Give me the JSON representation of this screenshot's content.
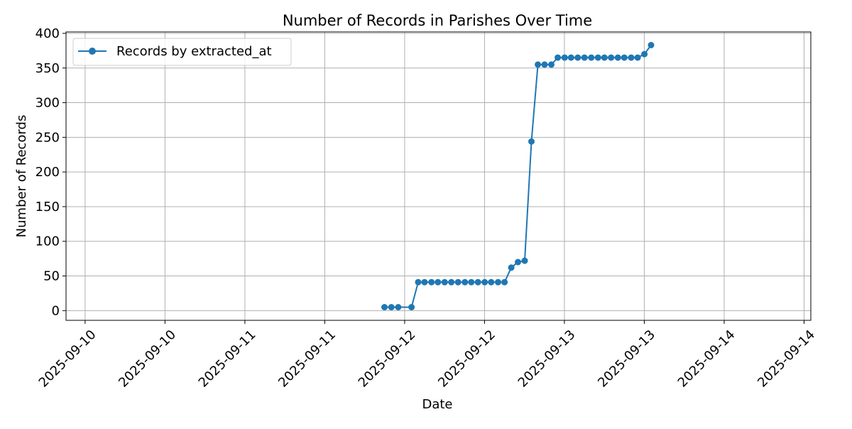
{
  "chart_data": {
    "type": "line",
    "title": "Number of Records in Parishes Over Time",
    "xlabel": "Date",
    "ylabel": "Number of Records",
    "x_tick_labels": [
      "2025-09-10",
      "2025-09-10",
      "2025-09-11",
      "2025-09-11",
      "2025-09-12",
      "2025-09-12",
      "2025-09-13",
      "2025-09-13",
      "2025-09-14",
      "2025-09-14"
    ],
    "x_tick_times": [
      "2025-09-10 00:00",
      "2025-09-10 12:00",
      "2025-09-11 00:00",
      "2025-09-11 12:00",
      "2025-09-12 00:00",
      "2025-09-12 12:00",
      "2025-09-13 00:00",
      "2025-09-13 12:00",
      "2025-09-14 00:00",
      "2025-09-14 12:00"
    ],
    "xlim": [
      "2025-09-09 21:08",
      "2025-09-14 13:01"
    ],
    "y_ticks": [
      0,
      50,
      100,
      150,
      200,
      250,
      300,
      350,
      400
    ],
    "ylim": [
      -14,
      402
    ],
    "grid": true,
    "legend_position": "upper left",
    "series": [
      {
        "name": "Records by extracted_at",
        "color": "#1f77b4",
        "marker": "circle",
        "points": [
          {
            "x": "2025-09-11 20:58",
            "y": 5
          },
          {
            "x": "2025-09-11 22:00",
            "y": 5
          },
          {
            "x": "2025-09-11 23:02",
            "y": 5
          },
          {
            "x": "2025-09-12 01:02",
            "y": 5
          },
          {
            "x": "2025-09-12 02:02",
            "y": 41
          },
          {
            "x": "2025-09-12 03:00",
            "y": 41
          },
          {
            "x": "2025-09-12 04:02",
            "y": 41
          },
          {
            "x": "2025-09-12 05:00",
            "y": 41
          },
          {
            "x": "2025-09-12 06:01",
            "y": 41
          },
          {
            "x": "2025-09-12 07:01",
            "y": 41
          },
          {
            "x": "2025-09-12 08:02",
            "y": 41
          },
          {
            "x": "2025-09-12 09:03",
            "y": 41
          },
          {
            "x": "2025-09-12 10:01",
            "y": 41
          },
          {
            "x": "2025-09-12 11:01",
            "y": 41
          },
          {
            "x": "2025-09-12 12:02",
            "y": 41
          },
          {
            "x": "2025-09-12 13:00",
            "y": 41
          },
          {
            "x": "2025-09-12 14:02",
            "y": 41
          },
          {
            "x": "2025-09-12 15:00",
            "y": 41
          },
          {
            "x": "2025-09-12 16:01",
            "y": 62
          },
          {
            "x": "2025-09-12 17:01",
            "y": 70
          },
          {
            "x": "2025-09-12 18:02",
            "y": 72
          },
          {
            "x": "2025-09-12 19:03",
            "y": 244
          },
          {
            "x": "2025-09-12 20:01",
            "y": 355
          },
          {
            "x": "2025-09-12 21:01",
            "y": 355
          },
          {
            "x": "2025-09-12 22:02",
            "y": 355
          },
          {
            "x": "2025-09-12 23:00",
            "y": 365
          },
          {
            "x": "2025-09-13 00:02",
            "y": 365
          },
          {
            "x": "2025-09-13 01:00",
            "y": 365
          },
          {
            "x": "2025-09-13 02:01",
            "y": 365
          },
          {
            "x": "2025-09-13 03:01",
            "y": 365
          },
          {
            "x": "2025-09-13 04:02",
            "y": 365
          },
          {
            "x": "2025-09-13 05:03",
            "y": 365
          },
          {
            "x": "2025-09-13 06:01",
            "y": 365
          },
          {
            "x": "2025-09-13 07:01",
            "y": 365
          },
          {
            "x": "2025-09-13 08:02",
            "y": 365
          },
          {
            "x": "2025-09-13 09:00",
            "y": 365
          },
          {
            "x": "2025-09-13 10:02",
            "y": 365
          },
          {
            "x": "2025-09-13 11:00",
            "y": 365
          },
          {
            "x": "2025-09-13 12:01",
            "y": 370
          },
          {
            "x": "2025-09-13 13:01",
            "y": 383
          }
        ]
      }
    ]
  }
}
